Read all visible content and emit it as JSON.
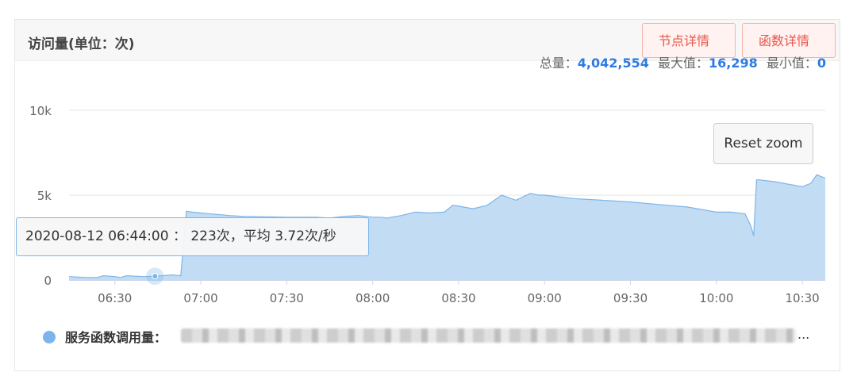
{
  "panel": {
    "title": "访问量(单位：次)",
    "buttons": {
      "node_details": "节点详情",
      "function_details": "函数详情"
    }
  },
  "stats": {
    "total_label": "总量：",
    "total": "4,042,554",
    "max_label": "最大值：",
    "max": "16,298",
    "min_label": "最小值：",
    "min": "0"
  },
  "reset_zoom": "Reset zoom",
  "tooltip": {
    "text": "2020-08-12 06:44:00 ： 223次，平均 3.72次/秒"
  },
  "legend": {
    "label": "服务函数调用量：",
    "ellipsis": "..."
  },
  "colors": {
    "series": "#7cb5ec",
    "area": "#c2dcf4",
    "buttons": "#e8564a",
    "stat_value": "#2c7be5"
  },
  "chart_data": {
    "type": "area",
    "xlabel": "",
    "ylabel": "",
    "y_ticks": [
      "0",
      "5k",
      "10k"
    ],
    "ylim": [
      0,
      10000
    ],
    "x_ticks": [
      "06:30",
      "07:00",
      "07:30",
      "08:00",
      "08:30",
      "09:00",
      "09:30",
      "10:00",
      "10:30"
    ],
    "xlim": [
      "06:14",
      "10:38"
    ],
    "grid": true,
    "series": [
      {
        "name": "服务函数调用量",
        "x": [
          "06:14",
          "06:20",
          "06:24",
          "06:26",
          "06:30",
          "06:32",
          "06:34",
          "06:40",
          "06:44",
          "06:50",
          "06:53",
          "06:55",
          "06:57",
          "07:00",
          "07:10",
          "07:15",
          "07:30",
          "07:40",
          "07:45",
          "07:50",
          "07:55",
          "08:00",
          "08:03",
          "08:05",
          "08:10",
          "08:15",
          "08:20",
          "08:25",
          "08:28",
          "08:30",
          "08:35",
          "08:40",
          "08:45",
          "08:50",
          "08:55",
          "08:58",
          "09:00",
          "09:05",
          "09:10",
          "09:20",
          "09:30",
          "09:40",
          "09:50",
          "10:00",
          "10:05",
          "10:10",
          "10:12",
          "10:13",
          "10:14",
          "10:15",
          "10:20",
          "10:25",
          "10:30",
          "10:33",
          "10:35",
          "10:38"
        ],
        "values": [
          200,
          150,
          150,
          250,
          200,
          150,
          250,
          200,
          223,
          300,
          250,
          4050,
          4000,
          3950,
          3800,
          3750,
          3700,
          3700,
          3650,
          3750,
          3800,
          3700,
          3700,
          3650,
          3800,
          4000,
          3950,
          4000,
          4400,
          4350,
          4200,
          4400,
          5000,
          4700,
          5100,
          5000,
          5000,
          4900,
          4800,
          4700,
          4600,
          4450,
          4300,
          4000,
          4000,
          3900,
          3200,
          2600,
          5900,
          5900,
          5800,
          5650,
          5500,
          5700,
          6200,
          6000
        ]
      }
    ],
    "tooltip_point": {
      "x": "06:44",
      "value": 223
    }
  }
}
